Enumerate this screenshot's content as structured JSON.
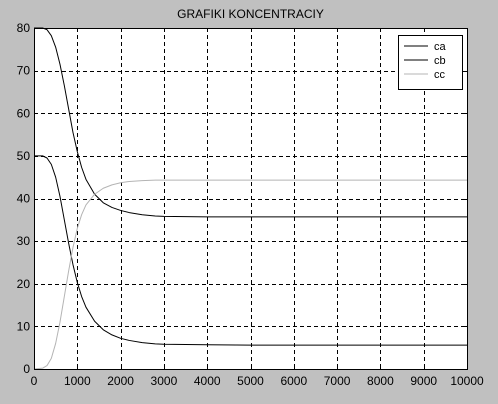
{
  "chart_data": {
    "type": "line",
    "title": "GRAFIKI KONCENTRACIY",
    "xlabel": "",
    "ylabel": "",
    "xlim": [
      0,
      10000
    ],
    "ylim": [
      0,
      80
    ],
    "x_ticks": [
      0,
      1000,
      2000,
      3000,
      4000,
      5000,
      6000,
      7000,
      8000,
      9000,
      10000
    ],
    "y_ticks": [
      0,
      10,
      20,
      30,
      40,
      50,
      60,
      70,
      80
    ],
    "grid": true,
    "legend_position": "top-right",
    "series": [
      {
        "name": "ca",
        "color": "#000000",
        "x": [
          0,
          200,
          300,
          400,
          500,
          600,
          700,
          800,
          900,
          1000,
          1100,
          1200,
          1400,
          1600,
          1800,
          2000,
          2200,
          2500,
          2800,
          3000,
          4000,
          5000,
          6000,
          7000,
          8000,
          9000,
          10000
        ],
        "y": [
          80,
          80,
          79.6,
          78.2,
          75.5,
          71.5,
          66.5,
          61,
          55.5,
          51,
          47.3,
          44.5,
          41,
          39,
          37.9,
          37.2,
          36.7,
          36.2,
          35.9,
          35.8,
          35.7,
          35.7,
          35.7,
          35.7,
          35.7,
          35.7,
          35.7
        ]
      },
      {
        "name": "cb",
        "color": "#000000",
        "x": [
          0,
          200,
          300,
          400,
          500,
          600,
          700,
          800,
          900,
          1000,
          1100,
          1200,
          1400,
          1600,
          1800,
          2000,
          2200,
          2500,
          2800,
          3000,
          4000,
          5000,
          6000,
          7000,
          8000,
          9000,
          10000
        ],
        "y": [
          50,
          50,
          49.5,
          48,
          45,
          40.5,
          35,
          29.5,
          24.5,
          20.3,
          17,
          14.5,
          11.2,
          9.2,
          8,
          7.2,
          6.7,
          6.2,
          5.9,
          5.8,
          5.7,
          5.6,
          5.6,
          5.6,
          5.6,
          5.6,
          5.6
        ]
      },
      {
        "name": "cc",
        "color": "#b4b4b4",
        "x": [
          0,
          200,
          300,
          400,
          500,
          600,
          700,
          800,
          900,
          1000,
          1100,
          1200,
          1400,
          1600,
          1800,
          2000,
          2200,
          2500,
          2800,
          3000,
          4000,
          5000,
          6000,
          7000,
          8000,
          9000,
          10000
        ],
        "y": [
          0,
          0.2,
          0.8,
          2.5,
          6,
          11,
          17,
          23,
          28.5,
          33,
          36.2,
          38.5,
          41,
          42.4,
          43.2,
          43.7,
          44,
          44.2,
          44.3,
          44.3,
          44.3,
          44.3,
          44.3,
          44.3,
          44.3,
          44.3,
          44.3
        ]
      }
    ]
  },
  "colors": {
    "figure_background": "#c0c0c0",
    "axes_background": "#ffffff"
  }
}
